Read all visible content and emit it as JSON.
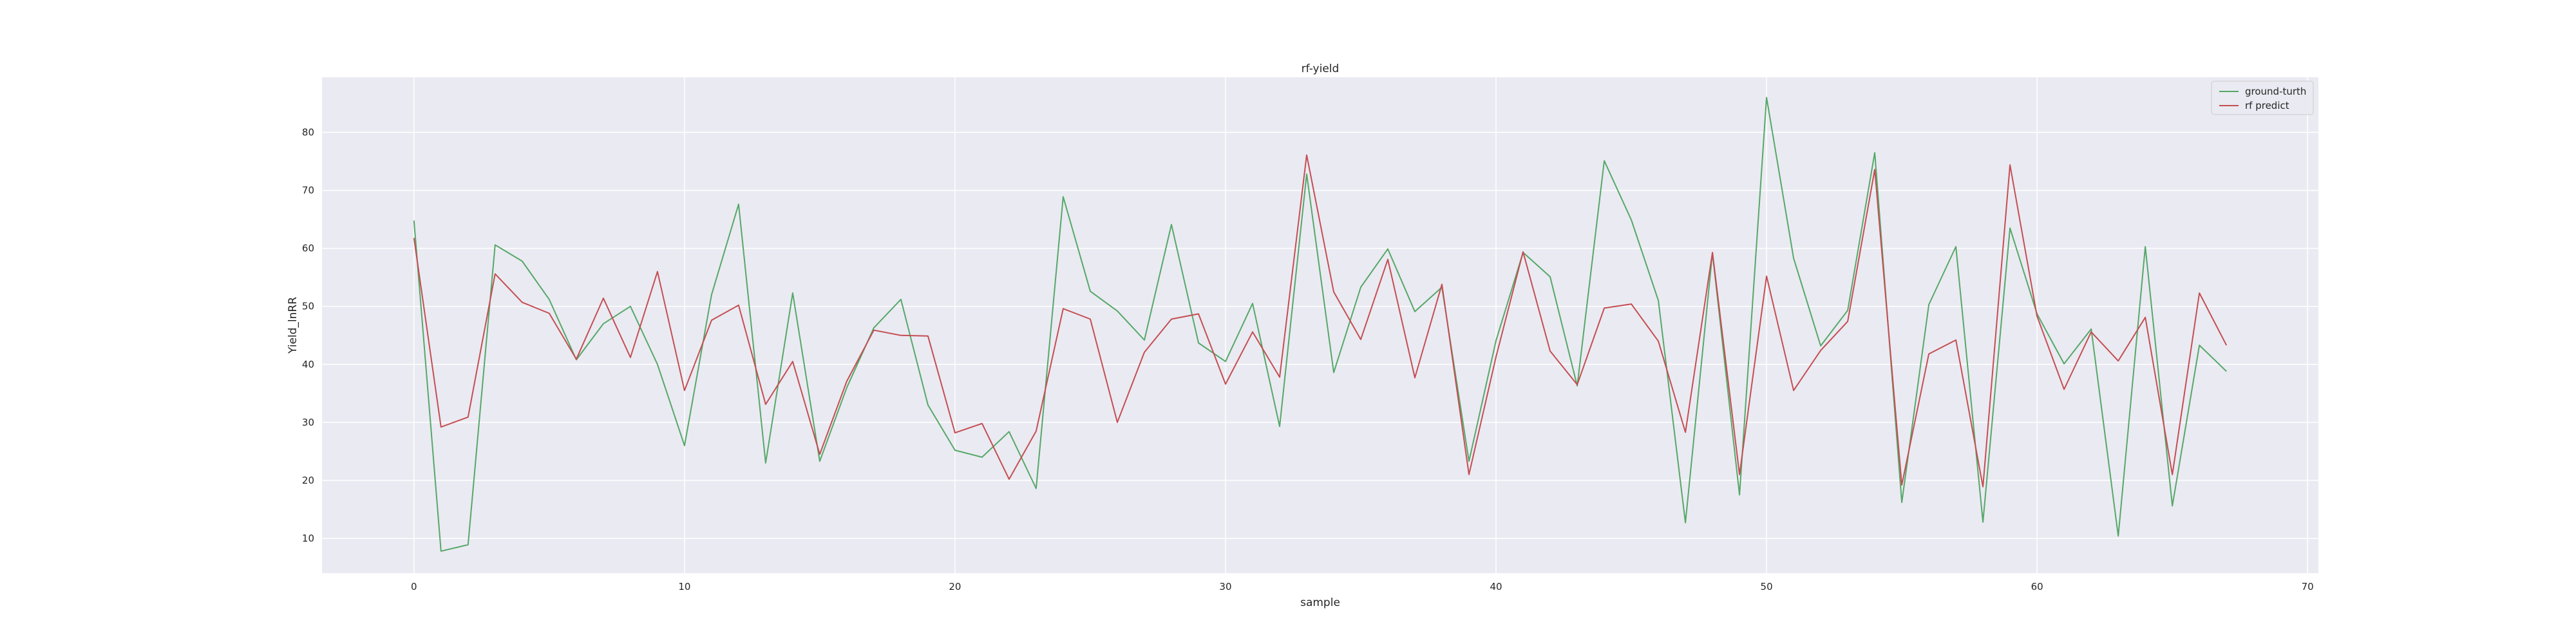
{
  "chart_data": {
    "type": "line",
    "title": "rf-yield",
    "xlabel": "sample",
    "ylabel": "Yield_lnRR",
    "xlim": [
      -3.4,
      70.4
    ],
    "ylim": [
      4.0,
      89.5
    ],
    "xticks": [
      0,
      10,
      20,
      30,
      40,
      50,
      60,
      70
    ],
    "yticks": [
      10,
      20,
      30,
      40,
      50,
      60,
      70,
      80
    ],
    "grid": true,
    "legend_position": "top-right",
    "background_color": "#eaeaf2",
    "grid_color": "#ffffff",
    "x": [
      0,
      1,
      2,
      3,
      4,
      5,
      6,
      7,
      8,
      9,
      10,
      11,
      12,
      13,
      14,
      15,
      16,
      17,
      18,
      19,
      20,
      21,
      22,
      23,
      24,
      25,
      26,
      27,
      28,
      29,
      30,
      31,
      32,
      33,
      34,
      35,
      36,
      37,
      38,
      39,
      40,
      41,
      42,
      43,
      44,
      45,
      46,
      47,
      48,
      49,
      50,
      51,
      52,
      53,
      54,
      55,
      56,
      57,
      58,
      59,
      60,
      61,
      62,
      63,
      64,
      65,
      66,
      67
    ],
    "series": [
      {
        "name": "ground-turth",
        "color": "#55a868",
        "values": [
          64.8,
          7.8,
          8.9,
          60.6,
          57.8,
          51.2,
          40.8,
          47.0,
          50.0,
          40.0,
          26.0,
          52.0,
          67.6,
          23.0,
          52.3,
          23.3,
          36.0,
          46.3,
          51.2,
          33.0,
          25.2,
          24.0,
          28.4,
          18.6,
          68.9,
          52.6,
          49.2,
          44.2,
          64.1,
          43.7,
          40.5,
          50.5,
          29.3,
          72.8,
          38.6,
          53.3,
          59.9,
          49.1,
          53.3,
          23.3,
          44.1,
          59.3,
          55.1,
          36.3,
          75.1,
          64.9,
          51.0,
          12.7,
          59.2,
          17.5,
          86.0,
          58.3,
          43.2,
          49.3,
          76.5,
          16.2,
          50.3,
          60.3,
          12.8,
          63.5,
          48.7,
          40.1,
          46.1,
          10.4,
          60.3,
          15.6,
          43.3,
          38.8
        ]
      },
      {
        "name": "rf predict",
        "color": "#c44e52",
        "values": [
          61.8,
          29.2,
          30.9,
          55.6,
          50.7,
          48.8,
          40.9,
          51.4,
          41.2,
          56.0,
          35.5,
          47.6,
          50.2,
          33.1,
          40.5,
          24.5,
          37.1,
          45.9,
          45.0,
          44.9,
          28.2,
          29.8,
          20.2,
          28.5,
          49.6,
          47.8,
          30.0,
          42.1,
          47.8,
          48.7,
          36.6,
          45.6,
          37.8,
          76.1,
          52.5,
          44.3,
          58.1,
          37.7,
          53.8,
          21.0,
          41.3,
          59.4,
          42.3,
          36.5,
          49.7,
          50.4,
          44.0,
          28.3,
          59.3,
          21.0,
          55.2,
          35.5,
          42.4,
          47.4,
          73.6,
          19.2,
          41.8,
          44.2,
          18.9,
          74.4,
          48.3,
          35.7,
          45.6,
          40.6,
          48.1,
          21.0,
          52.3,
          43.3
        ]
      }
    ]
  }
}
